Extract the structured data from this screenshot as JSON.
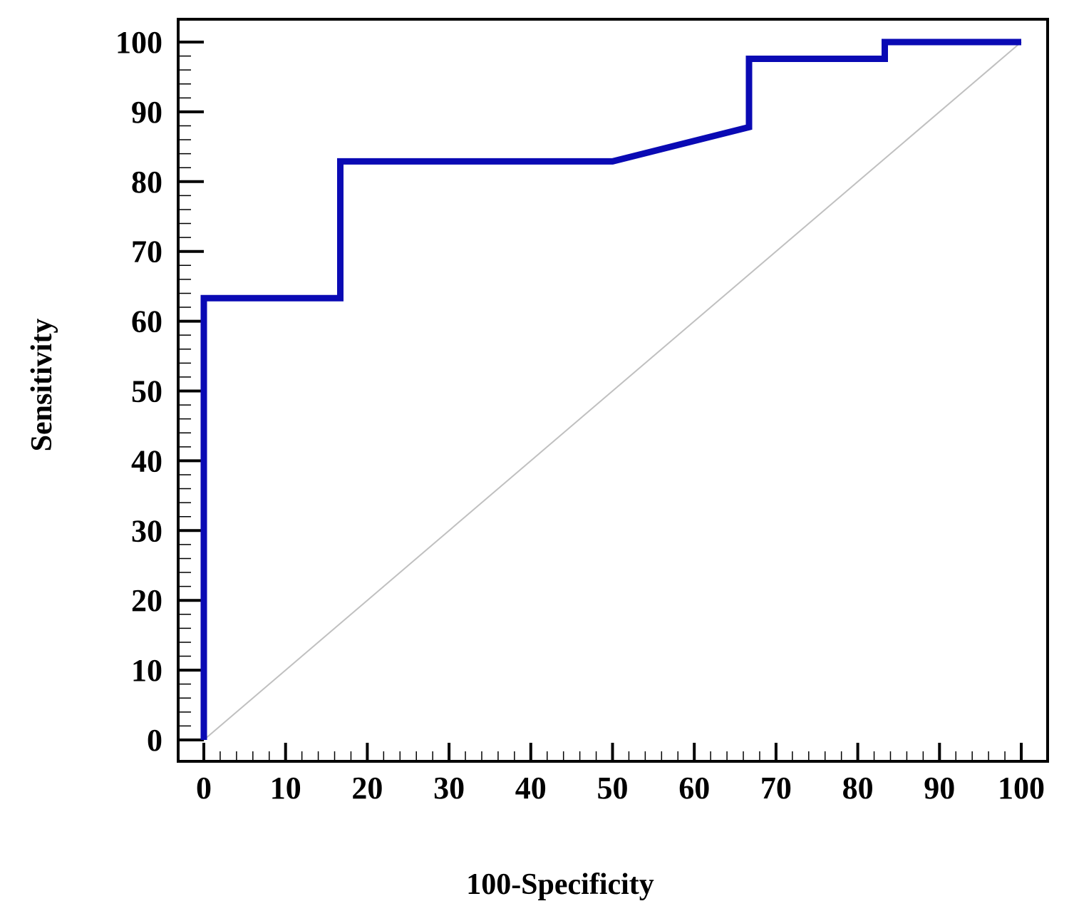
{
  "chart_data": {
    "type": "line",
    "title": "",
    "xlabel": "100-Specificity",
    "ylabel": "Sensitivity",
    "xlim": [
      0,
      100
    ],
    "ylim": [
      0,
      100
    ],
    "xticks": [
      "0",
      "10",
      "20",
      "30",
      "40",
      "50",
      "60",
      "70",
      "80",
      "90",
      "100"
    ],
    "yticks": [
      "0",
      "10",
      "20",
      "30",
      "40",
      "50",
      "60",
      "70",
      "80",
      "90",
      "100"
    ],
    "grid": false,
    "legend": "none",
    "series": [
      {
        "color": "#0a0ab4",
        "points": [
          [
            0,
            0
          ],
          [
            0,
            63.3
          ],
          [
            16.7,
            63.3
          ],
          [
            16.7,
            82.9
          ],
          [
            50,
            82.9
          ],
          [
            66.7,
            87.8
          ],
          [
            66.7,
            97.6
          ],
          [
            83.3,
            97.6
          ],
          [
            83.3,
            100
          ],
          [
            100,
            100
          ]
        ]
      }
    ],
    "reference_line": {
      "color": "#c0c0c0",
      "points": [
        [
          0,
          0
        ],
        [
          100,
          100
        ]
      ]
    }
  }
}
